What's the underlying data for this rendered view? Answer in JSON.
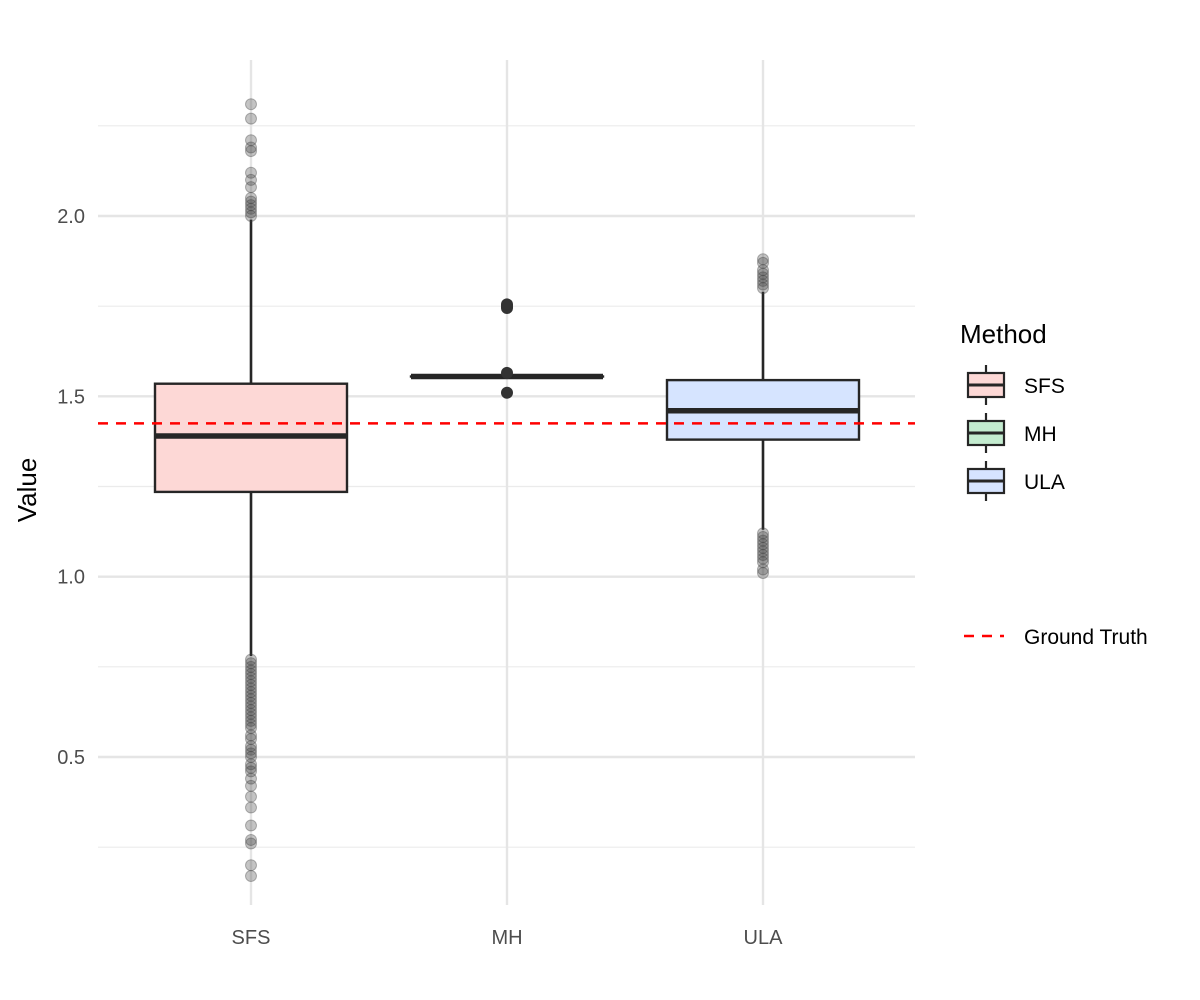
{
  "chart_data": {
    "type": "boxplot",
    "title": "",
    "xlabel": "",
    "ylabel": "Value",
    "ylim": [
      0.09,
      2.38
    ],
    "y_ticks": [
      "0.5",
      "1.0",
      "1.5",
      "2.0"
    ],
    "y_tick_values": [
      0.5,
      1.0,
      1.5,
      2.0
    ],
    "y_minor_values": [
      0.25,
      0.75,
      1.25,
      1.75,
      2.25
    ],
    "categories": [
      "SFS",
      "MH",
      "ULA"
    ],
    "legend_title": "Method",
    "series": [
      {
        "name": "SFS",
        "color": "#f8766d",
        "fill": "#fdd8d6",
        "q1": 1.235,
        "median": 1.39,
        "q3": 1.535,
        "whisker_low": 0.78,
        "whisker_high": 1.99,
        "outliers": [
          2.0,
          2.01,
          2.02,
          2.03,
          2.04,
          2.05,
          2.08,
          2.1,
          2.12,
          2.18,
          2.19,
          2.21,
          2.27,
          2.31,
          0.77,
          0.76,
          0.75,
          0.74,
          0.73,
          0.72,
          0.71,
          0.7,
          0.69,
          0.68,
          0.67,
          0.66,
          0.65,
          0.64,
          0.63,
          0.62,
          0.61,
          0.6,
          0.59,
          0.58,
          0.56,
          0.55,
          0.53,
          0.52,
          0.51,
          0.5,
          0.48,
          0.47,
          0.46,
          0.44,
          0.42,
          0.39,
          0.36,
          0.31,
          0.27,
          0.26,
          0.2,
          0.17
        ]
      },
      {
        "name": "MH",
        "color": "#00ba38",
        "fill": "#c4ecd0",
        "q1": 1.555,
        "median": 1.555,
        "q3": 1.555,
        "whisker_low": 1.555,
        "whisker_high": 1.555,
        "outliers": [
          1.75,
          1.745,
          1.755,
          1.565,
          1.51
        ]
      },
      {
        "name": "ULA",
        "color": "#619cff",
        "fill": "#d6e4ff",
        "q1": 1.38,
        "median": 1.46,
        "q3": 1.545,
        "whisker_low": 1.13,
        "whisker_high": 1.79,
        "outliers": [
          1.8,
          1.81,
          1.82,
          1.83,
          1.84,
          1.85,
          1.87,
          1.88,
          1.12,
          1.11,
          1.1,
          1.09,
          1.08,
          1.07,
          1.06,
          1.05,
          1.04,
          1.02,
          1.01
        ]
      }
    ],
    "reference_line": {
      "label": "Ground Truth",
      "value": 1.425,
      "color": "#ff0000",
      "style": "dashed"
    },
    "legend_position": "right",
    "grid": true
  }
}
